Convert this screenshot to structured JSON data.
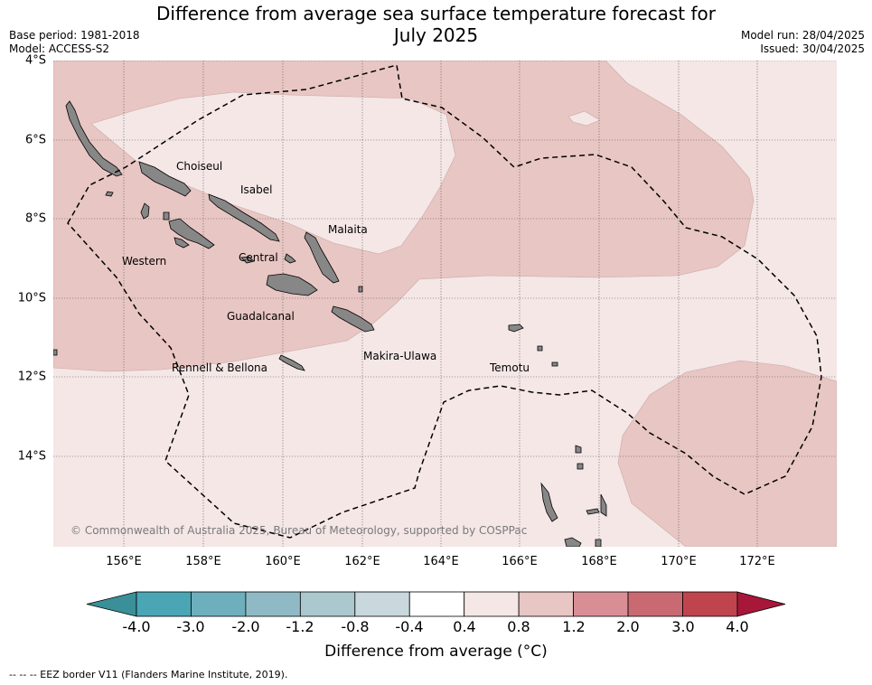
{
  "title": {
    "line1": "Difference from average sea surface temperature forecast for",
    "line2": "July 2025"
  },
  "meta_left": {
    "base_period": "Base period: 1981-2018",
    "model": "Model: ACCESS-S2"
  },
  "meta_right": {
    "model_run": "Model run: 28/04/2025",
    "issued": "Issued: 30/04/2025"
  },
  "map": {
    "lon_ticks": [
      "156°E",
      "158°E",
      "160°E",
      "162°E",
      "164°E",
      "166°E",
      "168°E",
      "170°E",
      "172°E"
    ],
    "lat_ticks": [
      "4°S",
      "6°S",
      "8°S",
      "10°S",
      "12°S",
      "14°S"
    ],
    "provinces": [
      "Choiseul",
      "Isabel",
      "Malaita",
      "Western",
      "Central",
      "Guadalcanal",
      "Makira-Ulawa",
      "Rennell & Bellona",
      "Temotu"
    ],
    "copyright": "© Commonwealth of Australia 2025, Bureau of Meteorology, supported by COSPPac",
    "colors": {
      "land": "#878787",
      "anomaly_0_4_0_8": "#f4e7e6",
      "anomaly_0_8_1_2": "#e8c6c3",
      "eez_border": "#000000"
    }
  },
  "colorbar": {
    "ticks": [
      "-4.0",
      "-3.0",
      "-2.0",
      "-1.2",
      "-0.8",
      "-0.4",
      "0.4",
      "0.8",
      "1.2",
      "2.0",
      "3.0",
      "4.0"
    ],
    "colors": [
      "#3a8f99",
      "#4aa6b5",
      "#6eafbe",
      "#8fbac5",
      "#aac8cd",
      "#c8d8dc",
      "#ffffff",
      "#f4e7e6",
      "#e8c6c3",
      "#d98e95",
      "#c96a73",
      "#c0444e",
      "#a8163a"
    ],
    "label": "Difference from average (°C)"
  },
  "footnote": "--  --  -- EEZ border V11 (Flanders Marine Institute, 2019)."
}
